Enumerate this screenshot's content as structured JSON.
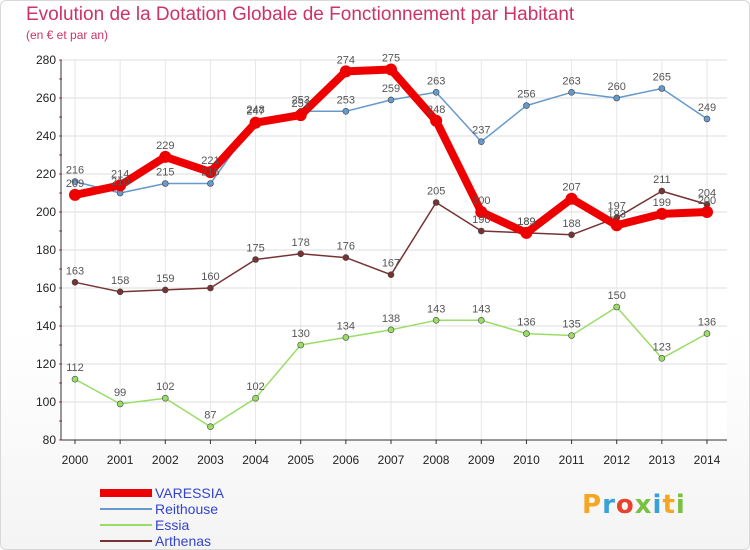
{
  "header": {
    "title": "Evolution de la Dotation Globale de Fonctionnement par Habitant",
    "subtitle": "(en € et par an)"
  },
  "logo": {
    "text": "Proxiti",
    "letters": [
      {
        "char": "P",
        "color": "#f5a623"
      },
      {
        "char": "r",
        "color": "#3aa0d8"
      },
      {
        "char": "o",
        "color": "#e8412c"
      },
      {
        "char": "x",
        "color": "#7ac143"
      },
      {
        "char": "i",
        "color": "#3aa0d8"
      },
      {
        "char": "t",
        "color": "#f5a623"
      },
      {
        "char": "i",
        "color": "#7ac143"
      }
    ]
  },
  "chart_data": {
    "type": "line",
    "title": "Evolution de la Dotation Globale de Fonctionnement par Habitant",
    "subtitle": "(en € et par an)",
    "x": [
      "2000",
      "2001",
      "2002",
      "2003",
      "2004",
      "2005",
      "2006",
      "2007",
      "2008",
      "2009",
      "2010",
      "2011",
      "2012",
      "2013",
      "2014"
    ],
    "ylim": [
      80,
      280
    ],
    "yticks": [
      "80",
      "100",
      "120",
      "140",
      "160",
      "180",
      "200",
      "220",
      "240",
      "260",
      "280"
    ],
    "grid": true,
    "legend_position": "bottom-left",
    "series": [
      {
        "name": "VARESSIA",
        "color": "#ee0000",
        "thick": true,
        "values": [
          209,
          214,
          229,
          221,
          247,
          251,
          274,
          275,
          248,
          200,
          189,
          207,
          193,
          199,
          200
        ],
        "labels": [
          "209",
          "214",
          "229",
          "221",
          "247",
          "251",
          "274",
          "275",
          "248",
          "200",
          "189",
          "207",
          "193",
          "199",
          "200"
        ]
      },
      {
        "name": "Reithouse",
        "color": "#6699cc",
        "thick": false,
        "values": [
          216,
          210,
          215,
          215,
          248,
          253,
          253,
          259,
          263,
          237,
          256,
          263,
          260,
          265,
          249
        ],
        "labels": [
          "216",
          "210",
          "215",
          "215",
          "248",
          "253",
          "253",
          "259",
          "263",
          "237",
          "256",
          "263",
          "260",
          "265",
          "249"
        ]
      },
      {
        "name": "Essia",
        "color": "#99dd66",
        "thick": false,
        "values": [
          112,
          99,
          102,
          87,
          102,
          130,
          134,
          138,
          143,
          143,
          136,
          135,
          150,
          123,
          136
        ],
        "labels": [
          "112",
          "99",
          "102",
          "87",
          "102",
          "130",
          "134",
          "138",
          "143",
          "143",
          "136",
          "135",
          "150",
          "123",
          "136"
        ]
      },
      {
        "name": "Arthenas",
        "color": "#773333",
        "thick": false,
        "values": [
          163,
          158,
          159,
          160,
          175,
          178,
          176,
          167,
          205,
          190,
          189,
          188,
          197,
          211,
          204
        ],
        "labels": [
          "163",
          "158",
          "159",
          "160",
          "175",
          "178",
          "176",
          "167",
          "205",
          "190",
          "189",
          "188",
          "197",
          "211",
          "204"
        ]
      }
    ]
  }
}
